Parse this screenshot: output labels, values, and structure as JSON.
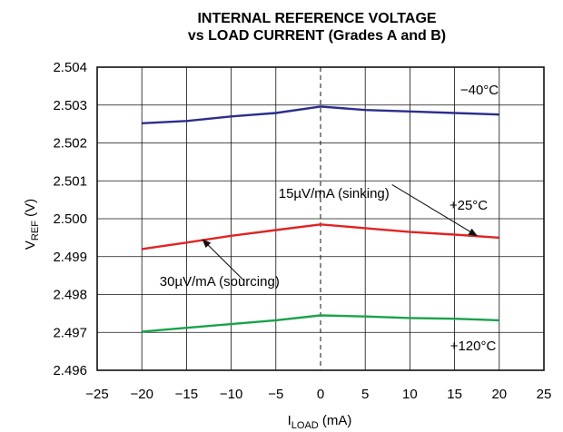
{
  "chart_data": {
    "type": "line",
    "title": "INTERNAL REFERENCE VOLTAGE",
    "subtitle": "vs LOAD CURRENT (Grades A and B)",
    "xlabel": {
      "main": "I",
      "sub": "LOAD",
      "unit": " (mA)"
    },
    "ylabel": {
      "main": "V",
      "sub": "REF",
      "unit": " (V)"
    },
    "xlim": [
      -25,
      25
    ],
    "ylim": [
      2.496,
      2.504
    ],
    "plot_x_range": [
      -20,
      20
    ],
    "x_ticks": [
      -25,
      -20,
      -15,
      -10,
      -5,
      0,
      5,
      10,
      15,
      20,
      25
    ],
    "x_tick_labels": [
      "−25",
      "−20",
      "−15",
      "−10",
      "−5",
      "0",
      "5",
      "10",
      "15",
      "20",
      "25"
    ],
    "y_ticks": [
      2.496,
      2.497,
      2.498,
      2.499,
      2.5,
      2.501,
      2.502,
      2.503,
      2.504
    ],
    "y_tick_labels": [
      "2.496",
      "2.497",
      "2.498",
      "2.499",
      "2.500",
      "2.501",
      "2.502",
      "2.503",
      "2.504"
    ],
    "grid": true,
    "zero_line": "dashed",
    "series": [
      {
        "name": "−40°C",
        "color": "#2b2e8c",
        "x": [
          -20,
          -15,
          -10,
          -5,
          0,
          5,
          10,
          15,
          20
        ],
        "y": [
          2.50252,
          2.50258,
          2.5027,
          2.50279,
          2.50296,
          2.50287,
          2.50283,
          2.50279,
          2.50275
        ]
      },
      {
        "name": "+25°C",
        "color": "#e02424",
        "x": [
          -20,
          -15,
          -10,
          -5,
          0,
          5,
          10,
          15,
          20
        ],
        "y": [
          2.4992,
          2.49937,
          2.49955,
          2.4997,
          2.49985,
          2.49975,
          2.49965,
          2.49958,
          2.4995
        ]
      },
      {
        "name": "+120°C",
        "color": "#1aa24a",
        "x": [
          -20,
          -15,
          -10,
          -5,
          0,
          5,
          10,
          15,
          20
        ],
        "y": [
          2.49702,
          2.49712,
          2.49722,
          2.49732,
          2.49745,
          2.49742,
          2.49738,
          2.49736,
          2.49732
        ]
      }
    ],
    "annotations": [
      {
        "text": "15µV/mA (sinking)",
        "at": [
          1.5,
          2.50055
        ],
        "arrow_from": [
          8,
          2.5009
        ],
        "arrow_to": [
          17.5,
          2.49955
        ]
      },
      {
        "text": "30µV/mA (sourcing)",
        "at": [
          -11.3,
          2.49823
        ],
        "arrow_from": [
          -8.5,
          2.49835
        ],
        "arrow_to": [
          -13.2,
          2.49945
        ]
      }
    ]
  }
}
